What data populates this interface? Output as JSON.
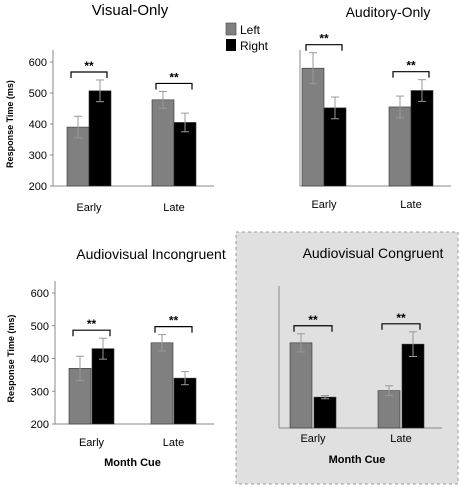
{
  "legend": {
    "items": [
      {
        "label": "Left",
        "color": "#808080"
      },
      {
        "label": "Right",
        "color": "#000000"
      }
    ]
  },
  "colors": {
    "left": "#808080",
    "right": "#000000",
    "highlight_bg": "#e0e0e0",
    "axis": "#8a8a8a"
  },
  "chart_data": [
    {
      "type": "bar",
      "title": "Visual-Only",
      "categories": [
        "Early",
        "Late"
      ],
      "series": [
        {
          "name": "Left",
          "values": [
            390,
            478
          ],
          "errors": [
            35,
            27
          ]
        },
        {
          "name": "Right",
          "values": [
            507,
            405
          ],
          "errors": [
            35,
            30
          ]
        }
      ],
      "ylabel": "Response Time (ms)",
      "xlabel": "",
      "ylim": [
        200,
        600
      ],
      "yticks": [
        200,
        300,
        400,
        500,
        600
      ],
      "significance": [
        "**",
        "**"
      ],
      "highlighted": false
    },
    {
      "type": "bar",
      "title": "Auditory-Only",
      "categories": [
        "Early",
        "Late"
      ],
      "series": [
        {
          "name": "Left",
          "values": [
            580,
            455
          ],
          "errors": [
            50,
            35
          ]
        },
        {
          "name": "Right",
          "values": [
            452,
            508
          ],
          "errors": [
            35,
            35
          ]
        }
      ],
      "ylabel": "",
      "xlabel": "",
      "ylim": [
        200,
        600
      ],
      "yticks": [],
      "significance": [
        "**",
        "**"
      ],
      "highlighted": false
    },
    {
      "type": "bar",
      "title": "Audiovisual Incongruent",
      "categories": [
        "Early",
        "Late"
      ],
      "series": [
        {
          "name": "Left",
          "values": [
            370,
            448
          ],
          "errors": [
            37,
            25
          ]
        },
        {
          "name": "Right",
          "values": [
            430,
            340
          ],
          "errors": [
            32,
            20
          ]
        }
      ],
      "ylabel": "Response Time (ms)",
      "xlabel": "Month Cue",
      "ylim": [
        200,
        600
      ],
      "yticks": [
        200,
        300,
        400,
        500,
        600
      ],
      "significance": [
        "**",
        "**"
      ],
      "highlighted": false
    },
    {
      "type": "bar",
      "title": "Audiovisual Congruent",
      "categories": [
        "Early",
        "Late"
      ],
      "series": [
        {
          "name": "Left",
          "values": [
            462,
            315
          ],
          "errors": [
            28,
            15
          ]
        },
        {
          "name": "Right",
          "values": [
            295,
            458
          ],
          "errors": [
            5,
            38
          ]
        }
      ],
      "ylabel": "",
      "xlabel": "Month Cue",
      "ylim": [
        200,
        600
      ],
      "yticks": [],
      "significance": [
        "**",
        "**"
      ],
      "highlighted": true
    }
  ]
}
